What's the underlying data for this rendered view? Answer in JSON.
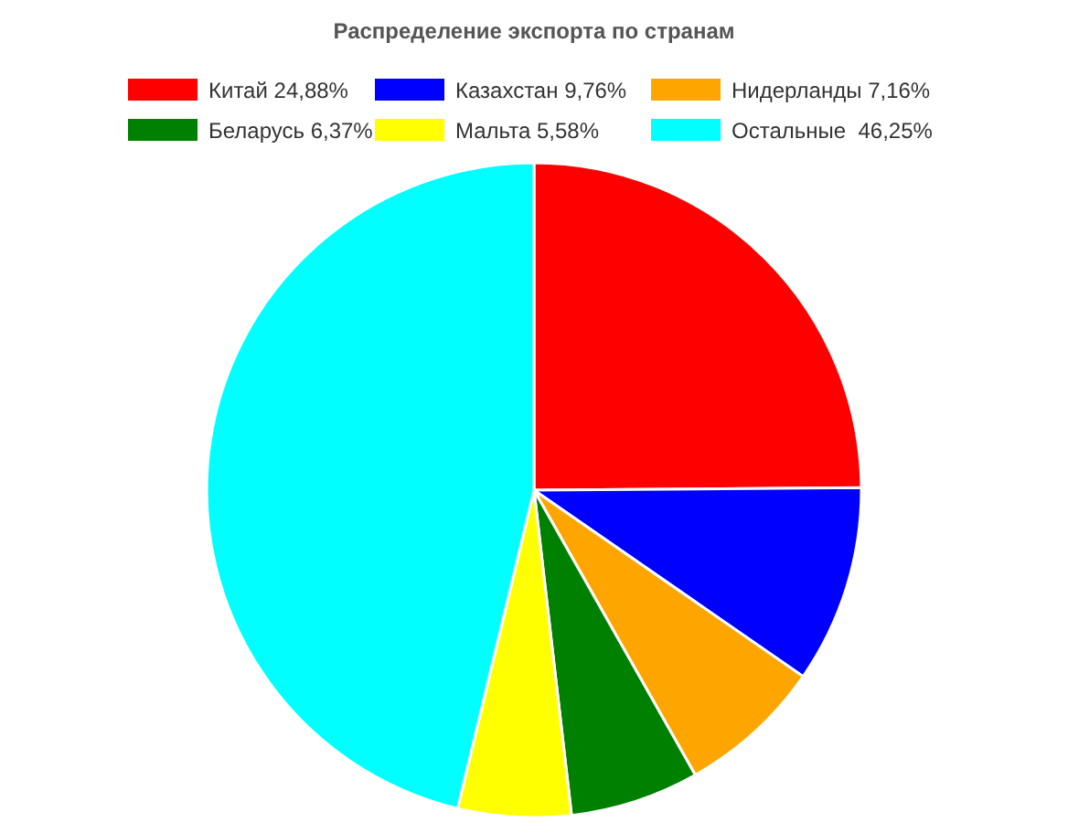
{
  "chart_data": {
    "type": "pie",
    "title": "Распределение экспорта по странам",
    "categories": [
      "Китай 24,88%",
      "Казахстан 9,76%",
      "Нидерланды 7,16%",
      "Беларусь 6,37%",
      "Мальта 5,58%",
      "Остальные  46,25%"
    ],
    "values": [
      24.88,
      9.76,
      7.16,
      6.37,
      5.58,
      46.25
    ],
    "colors": [
      "#ff0000",
      "#0000ff",
      "#ffa500",
      "#008000",
      "#ffff00",
      "#00ffff"
    ],
    "legend": "top"
  }
}
